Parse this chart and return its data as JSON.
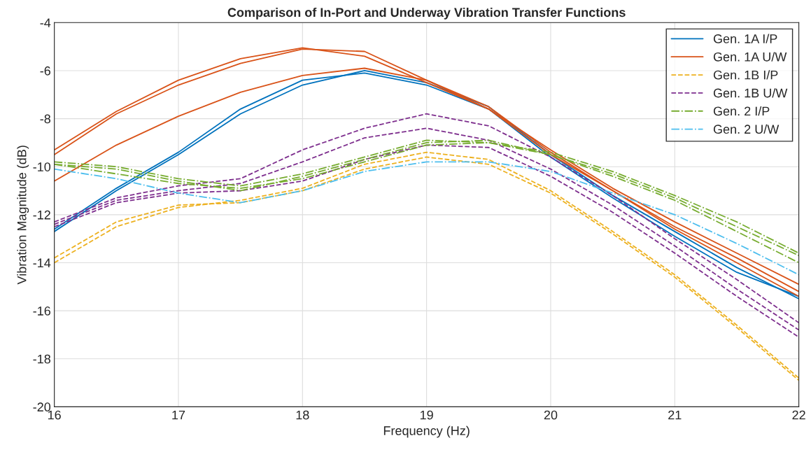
{
  "chart_data": {
    "type": "line",
    "title": "Comparison of In-Port and Underway Vibration Transfer Functions",
    "xlabel": "Frequency (Hz)",
    "ylabel": "Vibration Magnitude (dB)",
    "x": [
      16,
      16.5,
      17,
      17.5,
      18,
      18.5,
      19,
      19.5,
      20,
      20.5,
      21,
      21.5,
      22
    ],
    "xlim": [
      16,
      22
    ],
    "xticks": [
      16,
      17,
      18,
      19,
      20,
      21,
      22
    ],
    "ylim": [
      -20,
      -4
    ],
    "yticks": [
      -20,
      -18,
      -16,
      -14,
      -12,
      -10,
      -8,
      -6,
      -4
    ],
    "grid": true,
    "legend": "top right",
    "series": [
      {
        "name": "Gen. 1A I/P",
        "color": "#0072bd",
        "line_style": "solid",
        "values": [
          -12.7,
          -11.0,
          -9.5,
          -7.8,
          -6.6,
          -6.0,
          -6.5,
          -7.5,
          -9.5,
          -11.2,
          -12.7,
          -14.2,
          -15.5
        ]
      },
      {
        "color": "#0072bd",
        "line_style": "solid",
        "values": [
          -12.6,
          -10.9,
          -9.4,
          -7.6,
          -6.4,
          -6.1,
          -6.6,
          -7.6,
          -9.6,
          -11.3,
          -12.9,
          -14.4,
          -15.4
        ]
      },
      {
        "name": "Gen. 1A U/W",
        "color": "#d95319",
        "line_style": "solid",
        "values": [
          -9.3,
          -7.7,
          -6.4,
          -5.5,
          -5.05,
          -5.4,
          -6.5,
          -7.6,
          -9.3,
          -10.9,
          -12.3,
          -13.6,
          -14.9
        ]
      },
      {
        "color": "#d95319",
        "line_style": "solid",
        "values": [
          -9.5,
          -7.8,
          -6.6,
          -5.7,
          -5.1,
          -5.2,
          -6.4,
          -7.5,
          -9.4,
          -11.0,
          -12.5,
          -13.8,
          -15.2
        ]
      },
      {
        "color": "#d95319",
        "line_style": "solid",
        "values": [
          -10.6,
          -9.1,
          -7.9,
          -6.9,
          -6.2,
          -5.9,
          -6.4,
          -7.6,
          -9.5,
          -11.0,
          -12.6,
          -14.0,
          -15.4
        ]
      },
      {
        "name": "Gen. 1B I/P",
        "color": "#edb120",
        "line_style": "dashed",
        "values": [
          -14.0,
          -12.5,
          -11.7,
          -11.4,
          -10.9,
          -9.9,
          -9.4,
          -9.7,
          -11.0,
          -12.7,
          -14.5,
          -16.6,
          -18.8
        ]
      },
      {
        "color": "#edb120",
        "line_style": "dashed",
        "values": [
          -13.8,
          -12.3,
          -11.6,
          -11.5,
          -11.0,
          -10.1,
          -9.6,
          -9.9,
          -11.1,
          -12.8,
          -14.6,
          -16.7,
          -18.9
        ]
      },
      {
        "name": "Gen. 1B U/W",
        "color": "#7e2f8e",
        "line_style": "dashed",
        "values": [
          -12.3,
          -11.3,
          -10.8,
          -10.5,
          -9.3,
          -8.4,
          -7.8,
          -8.3,
          -9.6,
          -11.2,
          -13.0,
          -14.7,
          -16.5
        ]
      },
      {
        "color": "#7e2f8e",
        "line_style": "dashed",
        "values": [
          -12.4,
          -11.4,
          -11.0,
          -10.7,
          -9.8,
          -8.8,
          -8.4,
          -8.9,
          -10.1,
          -11.6,
          -13.3,
          -15.1,
          -16.8
        ]
      },
      {
        "color": "#7e2f8e",
        "line_style": "dashed",
        "values": [
          -12.5,
          -11.5,
          -11.1,
          -11.0,
          -10.6,
          -9.7,
          -9.1,
          -9.2,
          -10.4,
          -11.9,
          -13.6,
          -15.4,
          -17.1
        ]
      },
      {
        "name": "Gen. 2 I/P",
        "color": "#77ac30",
        "line_style": "dashdot",
        "values": [
          -9.8,
          -10.0,
          -10.5,
          -10.8,
          -10.3,
          -9.6,
          -8.9,
          -9.0,
          -9.4,
          -10.2,
          -11.2,
          -12.3,
          -13.6
        ]
      },
      {
        "color": "#77ac30",
        "line_style": "dashdot",
        "values": [
          -9.9,
          -10.1,
          -10.6,
          -11.0,
          -10.4,
          -9.7,
          -9.0,
          -8.9,
          -9.5,
          -10.3,
          -11.3,
          -12.5,
          -13.7
        ]
      },
      {
        "color": "#77ac30",
        "line_style": "dashdot",
        "values": [
          -9.9,
          -10.3,
          -10.7,
          -10.9,
          -10.5,
          -9.8,
          -9.1,
          -9.0,
          -9.5,
          -10.4,
          -11.4,
          -12.7,
          -14.0
        ]
      },
      {
        "name": "Gen. 2 U/W",
        "color": "#4dbeee",
        "line_style": "dashdot",
        "values": [
          -10.1,
          -10.5,
          -11.1,
          -11.5,
          -11.0,
          -10.2,
          -9.8,
          -9.8,
          -10.2,
          -11.1,
          -12.0,
          -13.2,
          -14.5
        ]
      }
    ]
  }
}
